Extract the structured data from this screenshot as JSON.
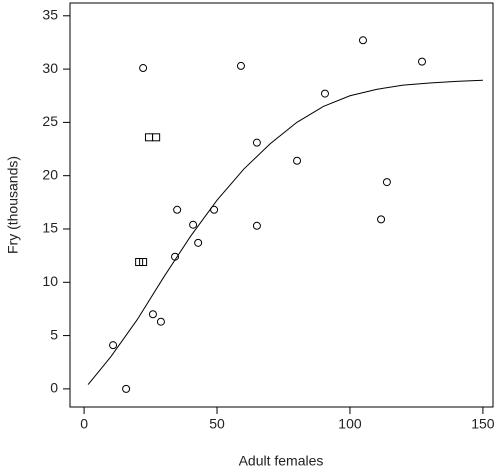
{
  "chart_data": {
    "type": "scatter",
    "xlabel": "Adult females",
    "ylabel": "Fry (thousands)",
    "xlim": [
      -5.3,
      153.8
    ],
    "ylim": [
      -1.7,
      36.2
    ],
    "xticks": [
      0,
      50,
      100,
      150
    ],
    "yticks": [
      0,
      5,
      10,
      15,
      20,
      25,
      30,
      35
    ],
    "series": [
      {
        "type": "scatter",
        "marker": "circle",
        "color": "#000000",
        "x": [
          10.9,
          15.8,
          22.2,
          25.9,
          28.9,
          34.2,
          35.0,
          41.0,
          42.9,
          48.9,
          59.0,
          65.0,
          65.0,
          80.1,
          90.6,
          104.9,
          111.7,
          113.9,
          127.1
        ],
        "values": [
          4.1,
          0,
          30.1,
          7.0,
          6.3,
          12.4,
          16.8,
          15.4,
          13.7,
          16.8,
          30.3,
          23.1,
          15.3,
          21.4,
          27.7,
          32.7,
          15.9,
          19.4,
          30.7
        ]
      },
      {
        "type": "scatter",
        "marker": "square",
        "color": "#000000",
        "x": [
          24.4,
          27.1,
          20.7,
          22.2
        ],
        "values": [
          23.6,
          23.6,
          11.9,
          11.9
        ]
      },
      {
        "type": "line",
        "color": "#000000",
        "x": [
          1.5,
          10,
          20,
          30,
          40,
          50,
          60,
          70,
          80,
          90,
          100,
          110,
          120,
          130,
          140,
          150
        ],
        "values": [
          0.4,
          3.0,
          6.5,
          10.5,
          14.3,
          17.7,
          20.6,
          23.0,
          25.0,
          26.5,
          27.5,
          28.1,
          28.5,
          28.7,
          28.85,
          28.95
        ]
      }
    ]
  }
}
